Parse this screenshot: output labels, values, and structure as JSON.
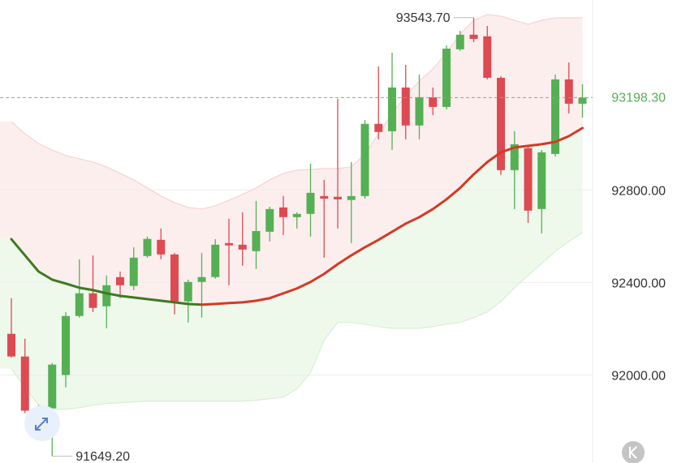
{
  "chart_data": {
    "type": "candlestick",
    "open": [
      92178,
      92080,
      91846,
      91856,
      92000,
      92255,
      92353,
      92297,
      92423,
      92385,
      92514,
      92584,
      92521,
      92318,
      92402,
      92423,
      92570,
      92563,
      92535,
      92619,
      92724,
      92682,
      92696,
      92773,
      92770,
      92756,
      92773,
      93085,
      93053,
      93242,
      93078,
      93200,
      93158,
      93407,
      93470,
      93463,
      93284,
      92885,
      92980,
      92717,
      92955,
      93277,
      93172
    ],
    "high": [
      92332,
      92157,
      91870,
      92052,
      92272,
      92500,
      92517,
      92430,
      92447,
      92552,
      92598,
      92633,
      92528,
      92412,
      92528,
      92587,
      92675,
      92703,
      92752,
      92727,
      92773,
      92703,
      92913,
      92843,
      93193,
      92920,
      93102,
      93333,
      93392,
      93340,
      93298,
      93242,
      93424,
      93487,
      93543.7,
      93508,
      93291,
      93053,
      92990,
      92972,
      93298,
      93350,
      93256
    ],
    "low": [
      92076,
      91835,
      91800,
      91649.2,
      91947,
      92248,
      92272,
      92202,
      92332,
      92367,
      92507,
      92500,
      92262,
      92227,
      92248,
      92416,
      92388,
      92472,
      92458,
      92577,
      92605,
      92633,
      92598,
      92507,
      92633,
      92570,
      92762,
      93018,
      92972,
      93018,
      93018,
      93123,
      93147,
      93400,
      93438,
      93277,
      92864,
      92717,
      92657,
      92612,
      92944,
      93130,
      93112
    ],
    "close": [
      92080,
      91846,
      91856,
      92045,
      92255,
      92353,
      92290,
      92388,
      92388,
      92507,
      92588,
      92521,
      92318,
      92402,
      92423,
      92563,
      92560,
      92542,
      92622,
      92717,
      92682,
      92696,
      92787,
      92762,
      92759,
      92773,
      93085,
      93050,
      93242,
      93078,
      93200,
      93158,
      93410,
      93470,
      93452,
      93284,
      92885,
      92997,
      92710,
      92962,
      93277,
      93172,
      93198.3
    ],
    "upper_band": [
      93095,
      93042,
      93000,
      92972,
      92948,
      92934,
      92920,
      92899,
      92871,
      92843,
      92808,
      92773,
      92745,
      92724,
      92717,
      92731,
      92755,
      92780,
      92808,
      92843,
      92871,
      92885,
      92888,
      92892,
      92892,
      92899,
      92955,
      93042,
      93130,
      93207,
      93270,
      93322,
      93392,
      93473,
      93532,
      93557,
      93550,
      93532,
      93515,
      93532,
      93543,
      93543,
      93543
    ],
    "middle_band": [
      92587,
      92517,
      92447,
      92412,
      92395,
      92377,
      92367,
      92353,
      92342,
      92335,
      92328,
      92321,
      92314,
      92307,
      92304,
      92307,
      92311,
      92314,
      92321,
      92332,
      92353,
      92374,
      92402,
      92437,
      92479,
      92517,
      92552,
      92584,
      92619,
      92654,
      92682,
      92717,
      92759,
      92808,
      92867,
      92920,
      92962,
      92983,
      92990,
      92997,
      93007,
      93032,
      93067
    ],
    "lower_band": [
      92027,
      91947,
      91870,
      91852,
      91852,
      91859,
      91870,
      91877,
      91880,
      91884,
      91887,
      91887,
      91887,
      91887,
      91887,
      91887,
      91887,
      91887,
      91891,
      91898,
      91905,
      91940,
      92010,
      92150,
      92227,
      92227,
      92220,
      92209,
      92202,
      92202,
      92202,
      92209,
      92220,
      92227,
      92248,
      92272,
      92318,
      92377,
      92430,
      92482,
      92535,
      92577,
      92615
    ],
    "up_color": "#55b054",
    "down_color": "#dd4a52",
    "ma_rising_color": "#d33a26",
    "ma_falling_color": "#3d7a1f",
    "ylim": [
      91620,
      93620
    ],
    "yticks": [
      {
        "value": 92000,
        "label": "92000.00"
      },
      {
        "value": 92400,
        "label": "92400.00"
      },
      {
        "value": 92800,
        "label": "92800.00"
      }
    ],
    "grid": true,
    "last_price": {
      "value": 93198.3,
      "label": "93198.30"
    },
    "annotations": [
      {
        "value": 93543.7,
        "label": "93543.70"
      },
      {
        "value": 91649.2,
        "label": "91649.20"
      }
    ]
  }
}
